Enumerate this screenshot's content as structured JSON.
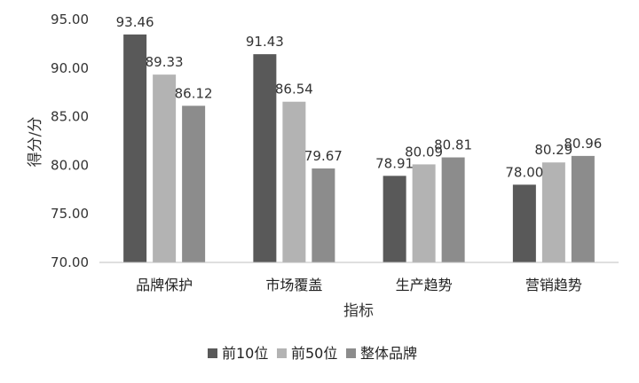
{
  "chart_data": {
    "type": "bar",
    "title": "",
    "xlabel": "指标",
    "ylabel": "得分/分",
    "ylim": [
      70,
      95
    ],
    "yticks": [
      "70.00",
      "75.00",
      "80.00",
      "85.00",
      "90.00",
      "95.00"
    ],
    "grid": false,
    "legend_position": "bottom",
    "categories": [
      "品牌保护",
      "市场覆盖",
      "生产趋势",
      "营销趋势"
    ],
    "series": [
      {
        "name": "前10位",
        "color": "#595959",
        "values": [
          93.46,
          91.43,
          78.91,
          78.0
        ],
        "labels": [
          "93.46",
          "91.43",
          "78.91",
          "78.00"
        ]
      },
      {
        "name": "前50位",
        "color": "#b3b3b3",
        "values": [
          89.33,
          86.54,
          80.09,
          80.29
        ],
        "labels": [
          "89.33",
          "86.54",
          "80.09",
          "80.29"
        ]
      },
      {
        "name": "整体品牌",
        "color": "#8c8c8c",
        "values": [
          86.12,
          79.67,
          80.81,
          80.96
        ],
        "labels": [
          "86.12",
          "79.67",
          "80.81",
          "80.96"
        ]
      }
    ]
  }
}
